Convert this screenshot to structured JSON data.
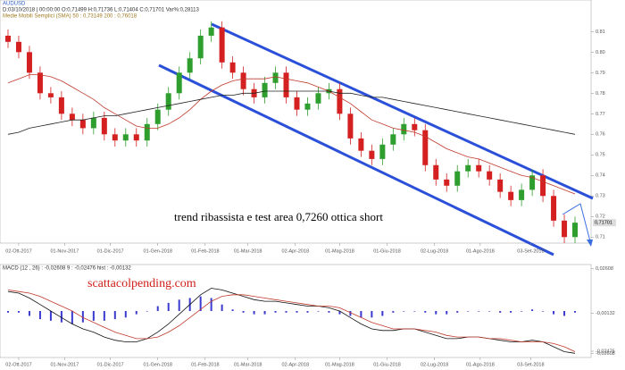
{
  "chart_data": [
    {
      "type": "candlestick",
      "title": "AUDUSD",
      "subtitle": "D:03/10/2018 | 00:00:00  O:0,71499  H:0,71736  L:0,71404  C:0,71701  Var%:0,28113",
      "indicator_label": "Medie Mobili Semplici (SMA)  50 : 0,73149  200 : 0,76018",
      "annotation": "trend ribassista e test area 0,7260 ottica short",
      "up_color": "#2e9e2e",
      "down_color": "#d42020",
      "open": [
        0.808,
        0.805,
        0.8,
        0.79,
        0.78,
        0.778,
        0.77,
        0.767,
        0.763,
        0.768,
        0.76,
        0.757,
        0.76,
        0.757,
        0.765,
        0.772,
        0.78,
        0.79,
        0.797,
        0.808,
        0.812,
        0.795,
        0.79,
        0.782,
        0.778,
        0.785,
        0.79,
        0.778,
        0.772,
        0.775,
        0.78,
        0.782,
        0.77,
        0.758,
        0.752,
        0.748,
        0.755,
        0.76,
        0.765,
        0.762,
        0.745,
        0.738,
        0.735,
        0.742,
        0.745,
        0.742,
        0.738,
        0.732,
        0.728,
        0.733,
        0.74,
        0.73,
        0.718,
        0.71
      ],
      "close": [
        0.805,
        0.8,
        0.79,
        0.78,
        0.778,
        0.77,
        0.767,
        0.763,
        0.768,
        0.76,
        0.757,
        0.76,
        0.757,
        0.765,
        0.772,
        0.78,
        0.79,
        0.797,
        0.808,
        0.812,
        0.795,
        0.79,
        0.782,
        0.778,
        0.785,
        0.79,
        0.778,
        0.772,
        0.775,
        0.78,
        0.782,
        0.77,
        0.758,
        0.752,
        0.748,
        0.755,
        0.76,
        0.765,
        0.762,
        0.745,
        0.738,
        0.735,
        0.742,
        0.745,
        0.742,
        0.738,
        0.732,
        0.728,
        0.733,
        0.74,
        0.73,
        0.718,
        0.71,
        0.717
      ],
      "high": [
        0.811,
        0.808,
        0.803,
        0.793,
        0.783,
        0.781,
        0.773,
        0.77,
        0.771,
        0.771,
        0.763,
        0.763,
        0.763,
        0.768,
        0.775,
        0.783,
        0.793,
        0.8,
        0.811,
        0.815,
        0.815,
        0.798,
        0.793,
        0.785,
        0.788,
        0.793,
        0.793,
        0.781,
        0.778,
        0.783,
        0.785,
        0.785,
        0.773,
        0.761,
        0.755,
        0.758,
        0.763,
        0.768,
        0.768,
        0.765,
        0.748,
        0.741,
        0.745,
        0.748,
        0.748,
        0.745,
        0.741,
        0.735,
        0.736,
        0.743,
        0.743,
        0.733,
        0.721,
        0.72
      ],
      "low": [
        0.802,
        0.797,
        0.787,
        0.777,
        0.775,
        0.767,
        0.764,
        0.76,
        0.76,
        0.757,
        0.754,
        0.754,
        0.754,
        0.754,
        0.762,
        0.769,
        0.777,
        0.787,
        0.794,
        0.805,
        0.792,
        0.787,
        0.779,
        0.775,
        0.775,
        0.782,
        0.775,
        0.769,
        0.769,
        0.772,
        0.777,
        0.767,
        0.755,
        0.749,
        0.745,
        0.745,
        0.752,
        0.757,
        0.759,
        0.742,
        0.735,
        0.732,
        0.732,
        0.739,
        0.739,
        0.735,
        0.729,
        0.725,
        0.725,
        0.73,
        0.727,
        0.715,
        0.707,
        0.707
      ],
      "series": [
        {
          "name": "SMA 50",
          "color": "#c0392b",
          "values": [
            0.785,
            0.787,
            0.789,
            0.789,
            0.788,
            0.786,
            0.783,
            0.78,
            0.777,
            0.773,
            0.77,
            0.767,
            0.764,
            0.763,
            0.763,
            0.765,
            0.768,
            0.772,
            0.777,
            0.781,
            0.784,
            0.786,
            0.787,
            0.787,
            0.787,
            0.788,
            0.787,
            0.786,
            0.785,
            0.783,
            0.781,
            0.778,
            0.775,
            0.771,
            0.767,
            0.765,
            0.763,
            0.762,
            0.761,
            0.759,
            0.756,
            0.753,
            0.751,
            0.749,
            0.748,
            0.746,
            0.744,
            0.742,
            0.74,
            0.739,
            0.737,
            0.735,
            0.733,
            0.731
          ]
        },
        {
          "name": "SMA 200",
          "color": "#222222",
          "values": [
            0.76,
            0.761,
            0.763,
            0.764,
            0.765,
            0.766,
            0.767,
            0.767,
            0.768,
            0.769,
            0.769,
            0.77,
            0.771,
            0.772,
            0.773,
            0.774,
            0.775,
            0.776,
            0.777,
            0.778,
            0.779,
            0.779,
            0.78,
            0.78,
            0.781,
            0.781,
            0.781,
            0.781,
            0.781,
            0.781,
            0.781,
            0.78,
            0.78,
            0.779,
            0.778,
            0.778,
            0.777,
            0.776,
            0.775,
            0.774,
            0.773,
            0.772,
            0.771,
            0.77,
            0.769,
            0.768,
            0.767,
            0.766,
            0.765,
            0.764,
            0.763,
            0.762,
            0.761,
            0.76
          ]
        }
      ],
      "xlim": [
        -0.75,
        54.5
      ],
      "ylim": [
        0.7075,
        0.8245
      ],
      "yticks": [
        {
          "value": 0.71,
          "label": "0.71"
        },
        {
          "value": 0.72,
          "label": "0.72"
        },
        {
          "value": 0.73,
          "label": "0.73"
        },
        {
          "value": 0.74,
          "label": "0.74"
        },
        {
          "value": 0.75,
          "label": "0.75"
        },
        {
          "value": 0.76,
          "label": "0.76"
        },
        {
          "value": 0.77,
          "label": "0.77"
        },
        {
          "value": 0.78,
          "label": "0.78"
        },
        {
          "value": 0.79,
          "label": "0.79"
        },
        {
          "value": 0.8,
          "label": "0.80"
        },
        {
          "value": 0.81,
          "label": "0.81"
        }
      ],
      "last_price": {
        "value": 0.71701,
        "label": "0,71701"
      },
      "xticks": [
        {
          "value": 1,
          "label": "02-Ott-2017"
        },
        {
          "value": 5.29,
          "label": "01-Nov-2017"
        },
        {
          "value": 9.57,
          "label": "01-Dic-2017"
        },
        {
          "value": 14,
          "label": "01-Gen-2018"
        },
        {
          "value": 18.43,
          "label": "01-Feb-2018"
        },
        {
          "value": 22.43,
          "label": "01-Mar-2018"
        },
        {
          "value": 26.86,
          "label": "02-Apr-2018"
        },
        {
          "value": 31,
          "label": "01-Mag-2018"
        },
        {
          "value": 35.43,
          "label": "01-Giu-2018"
        },
        {
          "value": 39.86,
          "label": "02-Lug-2018"
        },
        {
          "value": 44.14,
          "label": "01-Ago-2018"
        },
        {
          "value": 48.86,
          "label": "03-Set-2018"
        }
      ]
    },
    {
      "type": "macd",
      "title": "MACD  (12 , 26) : -0,02608  9 : -0,02476  hist : -0,00132",
      "annotation": "scattacolpending.com",
      "series": [
        {
          "name": "MACD",
          "color": "#111111",
          "values": [
            0.012,
            0.011,
            0.008,
            0.004,
            0.0,
            -0.004,
            -0.008,
            -0.011,
            -0.013,
            -0.016,
            -0.018,
            -0.019,
            -0.019,
            -0.017,
            -0.013,
            -0.008,
            -0.002,
            0.004,
            0.01,
            0.014,
            0.013,
            0.011,
            0.009,
            0.007,
            0.006,
            0.006,
            0.005,
            0.004,
            0.003,
            0.003,
            0.002,
            0.0,
            -0.004,
            -0.008,
            -0.011,
            -0.012,
            -0.012,
            -0.011,
            -0.011,
            -0.013,
            -0.015,
            -0.017,
            -0.017,
            -0.016,
            -0.016,
            -0.017,
            -0.018,
            -0.019,
            -0.019,
            -0.018,
            -0.019,
            -0.022,
            -0.025,
            -0.026
          ]
        },
        {
          "name": "Signal",
          "color": "#c0392b",
          "values": [
            0.013,
            0.012,
            0.011,
            0.009,
            0.006,
            0.003,
            0.0,
            -0.004,
            -0.007,
            -0.01,
            -0.013,
            -0.015,
            -0.017,
            -0.017,
            -0.016,
            -0.013,
            -0.009,
            -0.004,
            0.001,
            0.006,
            0.009,
            0.01,
            0.01,
            0.009,
            0.008,
            0.007,
            0.006,
            0.005,
            0.004,
            0.003,
            0.003,
            0.002,
            -0.001,
            -0.004,
            -0.007,
            -0.009,
            -0.011,
            -0.011,
            -0.011,
            -0.012,
            -0.013,
            -0.015,
            -0.016,
            -0.016,
            -0.016,
            -0.017,
            -0.017,
            -0.018,
            -0.019,
            -0.019,
            -0.019,
            -0.02,
            -0.022,
            -0.025
          ]
        }
      ],
      "hist_color": "#3a3ad0",
      "hist": [
        -0.001,
        -0.001,
        -0.003,
        -0.005,
        -0.006,
        -0.007,
        -0.008,
        -0.007,
        -0.006,
        -0.006,
        -0.005,
        -0.004,
        -0.002,
        0.0,
        0.003,
        0.005,
        0.007,
        0.008,
        0.009,
        0.008,
        0.004,
        0.001,
        -0.001,
        -0.002,
        -0.002,
        -0.001,
        -0.001,
        -0.001,
        -0.001,
        0.0,
        -0.001,
        -0.002,
        -0.003,
        -0.004,
        -0.004,
        -0.003,
        -0.001,
        0.0,
        0.0,
        -0.001,
        -0.002,
        -0.002,
        -0.001,
        0.0,
        0.0,
        0.0,
        -0.001,
        -0.001,
        0.0,
        0.001,
        0.0,
        -0.002,
        -0.003,
        -0.001
      ],
      "ylim": [
        -0.0275,
        0.0275
      ],
      "yticks": [
        {
          "value": 0.02608,
          "label": "0,02608"
        },
        {
          "value": -0.00132,
          "label": "-0,00132"
        },
        {
          "value": -0.02476,
          "label": "-0,02476"
        },
        {
          "value": -0.02608,
          "label": "-0,02608"
        }
      ]
    }
  ]
}
